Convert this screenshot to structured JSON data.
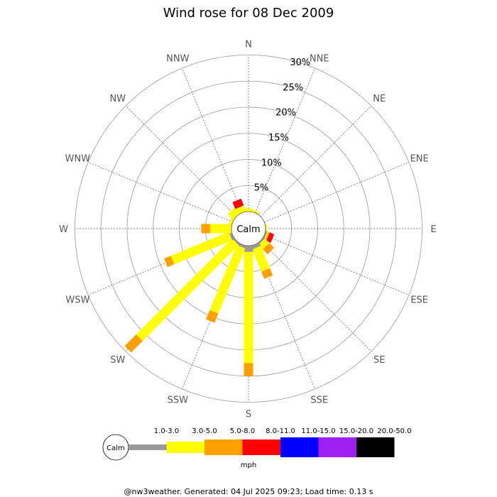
{
  "chart_data": {
    "type": "wind-rose",
    "title": "Wind rose for 08 Dec 2009",
    "directions": [
      "N",
      "NNE",
      "NE",
      "ENE",
      "E",
      "ESE",
      "SE",
      "SSE",
      "S",
      "SSW",
      "SW",
      "WSW",
      "W",
      "WNW",
      "NW",
      "NNW"
    ],
    "radial_unit": "%",
    "rlim": [
      0,
      30
    ],
    "rticks": [
      5,
      10,
      15,
      20,
      25,
      30
    ],
    "rtick_labels": [
      "5%",
      "10%",
      "15%",
      "20%",
      "25%",
      "30%"
    ],
    "calm_label": "Calm",
    "unit_label": "mph",
    "speed_bins": [
      {
        "label": "1.0-3.0",
        "color": "#999999"
      },
      {
        "label": "3.0-5.0",
        "color": "#ffff00"
      },
      {
        "label": "5.0-8.0",
        "color": "#ff9f00"
      },
      {
        "label": "8.0-11.0",
        "color": "#ff0000"
      },
      {
        "label": "11.0-15.0",
        "color": "#0000ff"
      },
      {
        "label": "15.0-20.0",
        "color": "#a020f0"
      },
      {
        "label": "20.0-50.0",
        "color": "#000000"
      }
    ],
    "series": [
      {
        "values": [
          0.0,
          0.0,
          0.0,
          0.0,
          0.0,
          0.3,
          0.3,
          0.7,
          1.2,
          0.5,
          0.3,
          0.5,
          0.0,
          0.0,
          0.0,
          0.0
        ]
      },
      {
        "values": [
          0.6,
          0.4,
          0.0,
          0.0,
          0.3,
          0.2,
          1.2,
          4.6,
          21.3,
          13.5,
          26.0,
          12.0,
          4.1,
          0.6,
          1.5,
          1.2
        ]
      },
      {
        "values": [
          0.0,
          0.0,
          0.0,
          0.0,
          0.0,
          0.3,
          1.3,
          1.5,
          2.5,
          1.9,
          3.1,
          1.4,
          1.7,
          0.0,
          0.0,
          0.0
        ]
      },
      {
        "values": [
          0.0,
          0.0,
          0.0,
          0.0,
          0.0,
          0.9,
          0.0,
          0.0,
          0.0,
          0.0,
          0.0,
          0.0,
          0.0,
          0.0,
          0.0,
          1.4
        ]
      }
    ]
  },
  "footer": {
    "text": "@nw3weather. Generated: 04 Jul 2025 09:23; Load time: 0.13 s"
  }
}
